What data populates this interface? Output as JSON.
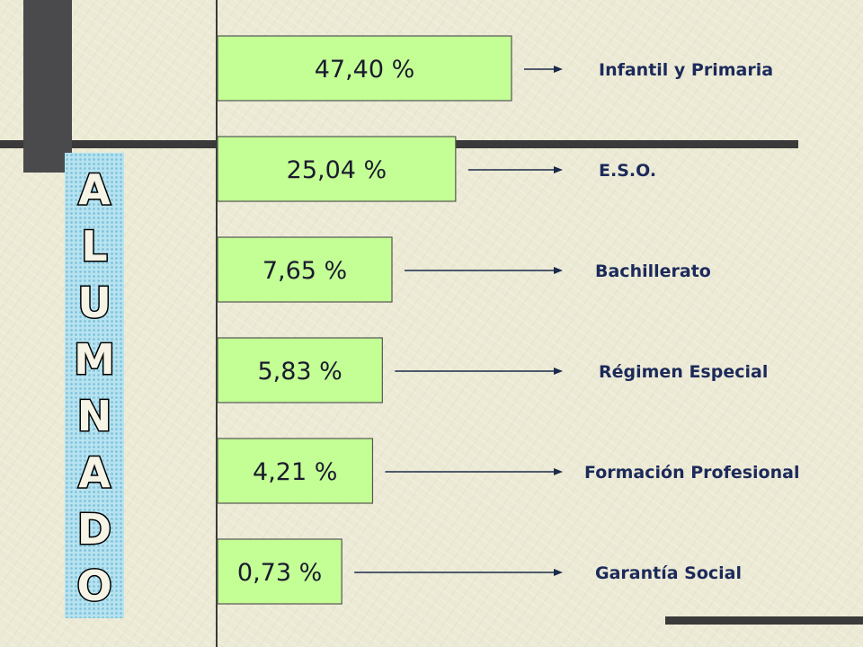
{
  "vertical_title": "ALUMNADO",
  "chart_data": {
    "type": "bar",
    "orientation": "horizontal",
    "categories": [
      "Infantil y Primaria",
      "E.S.O.",
      "Bachillerato",
      "Régimen Especial",
      "Formación Profesional",
      "Garantía Social"
    ],
    "values": [
      47.4,
      25.04,
      7.65,
      5.83,
      4.21,
      0.73
    ],
    "value_labels": [
      "47,40 %",
      "25,04 %",
      "7,65 %",
      "5,83 %",
      "4,21 %",
      "0,73 %"
    ],
    "title": "",
    "xlabel": "",
    "ylabel": "",
    "colors": {
      "bar": "#C3FF94",
      "arrow": "#1A2A4A",
      "label": "#1C2A5A",
      "title_fill": "#B7E3F0",
      "dark": "#3A3A3A"
    }
  }
}
